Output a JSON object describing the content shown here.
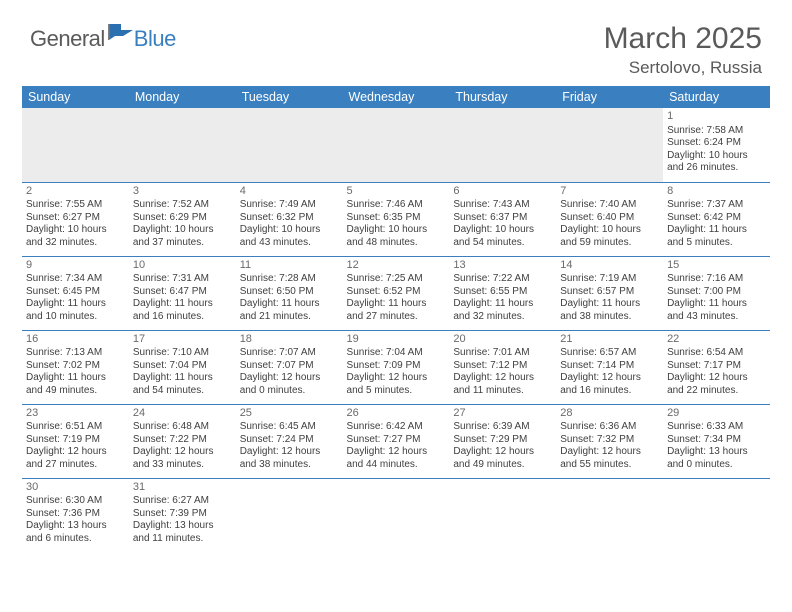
{
  "logo": {
    "general": "General",
    "blue": "Blue"
  },
  "title": "March 2025",
  "location": "Sertolovo, Russia",
  "weekdays": [
    "Sunday",
    "Monday",
    "Tuesday",
    "Wednesday",
    "Thursday",
    "Friday",
    "Saturday"
  ],
  "colors": {
    "header_bg": "#3a7fbf",
    "header_text": "#ffffff",
    "rule": "#3a7fbf",
    "text": "#404040",
    "daynum": "#6a6a6a",
    "blank_bg": "#ececec"
  },
  "days": [
    {
      "n": 1,
      "sunrise": "7:58 AM",
      "sunset": "6:24 PM",
      "daylight": "10 hours and 26 minutes."
    },
    {
      "n": 2,
      "sunrise": "7:55 AM",
      "sunset": "6:27 PM",
      "daylight": "10 hours and 32 minutes."
    },
    {
      "n": 3,
      "sunrise": "7:52 AM",
      "sunset": "6:29 PM",
      "daylight": "10 hours and 37 minutes."
    },
    {
      "n": 4,
      "sunrise": "7:49 AM",
      "sunset": "6:32 PM",
      "daylight": "10 hours and 43 minutes."
    },
    {
      "n": 5,
      "sunrise": "7:46 AM",
      "sunset": "6:35 PM",
      "daylight": "10 hours and 48 minutes."
    },
    {
      "n": 6,
      "sunrise": "7:43 AM",
      "sunset": "6:37 PM",
      "daylight": "10 hours and 54 minutes."
    },
    {
      "n": 7,
      "sunrise": "7:40 AM",
      "sunset": "6:40 PM",
      "daylight": "10 hours and 59 minutes."
    },
    {
      "n": 8,
      "sunrise": "7:37 AM",
      "sunset": "6:42 PM",
      "daylight": "11 hours and 5 minutes."
    },
    {
      "n": 9,
      "sunrise": "7:34 AM",
      "sunset": "6:45 PM",
      "daylight": "11 hours and 10 minutes."
    },
    {
      "n": 10,
      "sunrise": "7:31 AM",
      "sunset": "6:47 PM",
      "daylight": "11 hours and 16 minutes."
    },
    {
      "n": 11,
      "sunrise": "7:28 AM",
      "sunset": "6:50 PM",
      "daylight": "11 hours and 21 minutes."
    },
    {
      "n": 12,
      "sunrise": "7:25 AM",
      "sunset": "6:52 PM",
      "daylight": "11 hours and 27 minutes."
    },
    {
      "n": 13,
      "sunrise": "7:22 AM",
      "sunset": "6:55 PM",
      "daylight": "11 hours and 32 minutes."
    },
    {
      "n": 14,
      "sunrise": "7:19 AM",
      "sunset": "6:57 PM",
      "daylight": "11 hours and 38 minutes."
    },
    {
      "n": 15,
      "sunrise": "7:16 AM",
      "sunset": "7:00 PM",
      "daylight": "11 hours and 43 minutes."
    },
    {
      "n": 16,
      "sunrise": "7:13 AM",
      "sunset": "7:02 PM",
      "daylight": "11 hours and 49 minutes."
    },
    {
      "n": 17,
      "sunrise": "7:10 AM",
      "sunset": "7:04 PM",
      "daylight": "11 hours and 54 minutes."
    },
    {
      "n": 18,
      "sunrise": "7:07 AM",
      "sunset": "7:07 PM",
      "daylight": "12 hours and 0 minutes."
    },
    {
      "n": 19,
      "sunrise": "7:04 AM",
      "sunset": "7:09 PM",
      "daylight": "12 hours and 5 minutes."
    },
    {
      "n": 20,
      "sunrise": "7:01 AM",
      "sunset": "7:12 PM",
      "daylight": "12 hours and 11 minutes."
    },
    {
      "n": 21,
      "sunrise": "6:57 AM",
      "sunset": "7:14 PM",
      "daylight": "12 hours and 16 minutes."
    },
    {
      "n": 22,
      "sunrise": "6:54 AM",
      "sunset": "7:17 PM",
      "daylight": "12 hours and 22 minutes."
    },
    {
      "n": 23,
      "sunrise": "6:51 AM",
      "sunset": "7:19 PM",
      "daylight": "12 hours and 27 minutes."
    },
    {
      "n": 24,
      "sunrise": "6:48 AM",
      "sunset": "7:22 PM",
      "daylight": "12 hours and 33 minutes."
    },
    {
      "n": 25,
      "sunrise": "6:45 AM",
      "sunset": "7:24 PM",
      "daylight": "12 hours and 38 minutes."
    },
    {
      "n": 26,
      "sunrise": "6:42 AM",
      "sunset": "7:27 PM",
      "daylight": "12 hours and 44 minutes."
    },
    {
      "n": 27,
      "sunrise": "6:39 AM",
      "sunset": "7:29 PM",
      "daylight": "12 hours and 49 minutes."
    },
    {
      "n": 28,
      "sunrise": "6:36 AM",
      "sunset": "7:32 PM",
      "daylight": "12 hours and 55 minutes."
    },
    {
      "n": 29,
      "sunrise": "6:33 AM",
      "sunset": "7:34 PM",
      "daylight": "13 hours and 0 minutes."
    },
    {
      "n": 30,
      "sunrise": "6:30 AM",
      "sunset": "7:36 PM",
      "daylight": "13 hours and 6 minutes."
    },
    {
      "n": 31,
      "sunrise": "6:27 AM",
      "sunset": "7:39 PM",
      "daylight": "13 hours and 11 minutes."
    }
  ],
  "first_weekday_index": 6
}
